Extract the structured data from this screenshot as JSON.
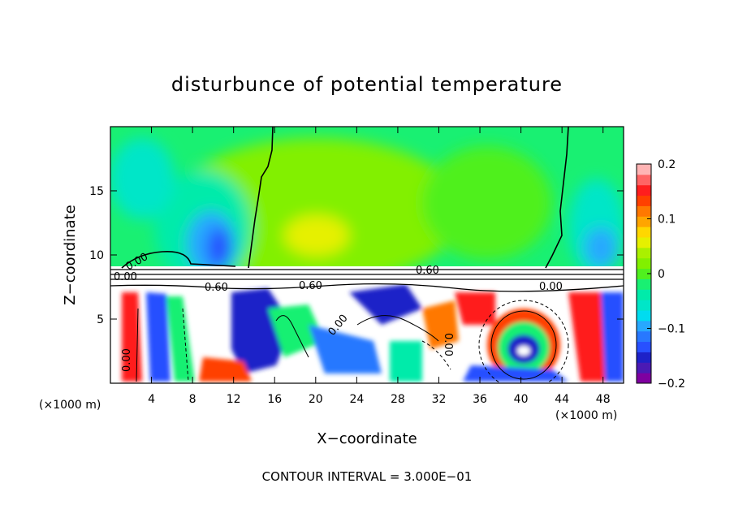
{
  "chart_data": {
    "type": "heatmap",
    "title": "disturbunce of potential temperature",
    "xlabel": "X−coordinate",
    "ylabel": "Z−coordinate",
    "x_unit_left": "(×1000 m)",
    "x_unit_right": "(×1000 m)",
    "xlim": [
      0,
      50
    ],
    "ylim": [
      0,
      20
    ],
    "x_ticks": [
      {
        "value": 4,
        "label": "4"
      },
      {
        "value": 8,
        "label": "8"
      },
      {
        "value": 12,
        "label": "12"
      },
      {
        "value": 16,
        "label": "16"
      },
      {
        "value": 20,
        "label": "20"
      },
      {
        "value": 24,
        "label": "24"
      },
      {
        "value": 28,
        "label": "28"
      },
      {
        "value": 32,
        "label": "32"
      },
      {
        "value": 36,
        "label": "36"
      },
      {
        "value": 40,
        "label": "40"
      },
      {
        "value": 44,
        "label": "44"
      },
      {
        "value": 48,
        "label": "48"
      }
    ],
    "y_ticks": [
      {
        "value": 5,
        "label": "5"
      },
      {
        "value": 10,
        "label": "10"
      },
      {
        "value": 15,
        "label": "15"
      }
    ],
    "colorbar": {
      "min": -0.2,
      "max": 0.2,
      "ticks": [
        {
          "value": 0.2,
          "label": "0.2"
        },
        {
          "value": 0.1,
          "label": "0.1"
        },
        {
          "value": 0,
          "label": "0"
        },
        {
          "value": -0.1,
          "label": "−0.1"
        },
        {
          "value": -0.2,
          "label": "−0.2"
        }
      ],
      "colors": [
        "#7f00a0",
        "#4b1ab4",
        "#1e22c8",
        "#2850ff",
        "#2878ff",
        "#28a8ff",
        "#00dcf0",
        "#00e6c8",
        "#00ebaa",
        "#19f072",
        "#50f01e",
        "#82f000",
        "#aaf000",
        "#e6f000",
        "#ffd700",
        "#ffa500",
        "#ff7800",
        "#ff4000",
        "#ff1e1e",
        "#ff6464",
        "#ffb4b4"
      ]
    },
    "contour_labels": [
      "0.00",
      "0.60",
      "0.60",
      "0.00",
      "0.00",
      "0.00",
      "0.60",
      "0.00",
      "0.00"
    ],
    "footer": "CONTOUR INTERVAL = 3.000E−01"
  }
}
